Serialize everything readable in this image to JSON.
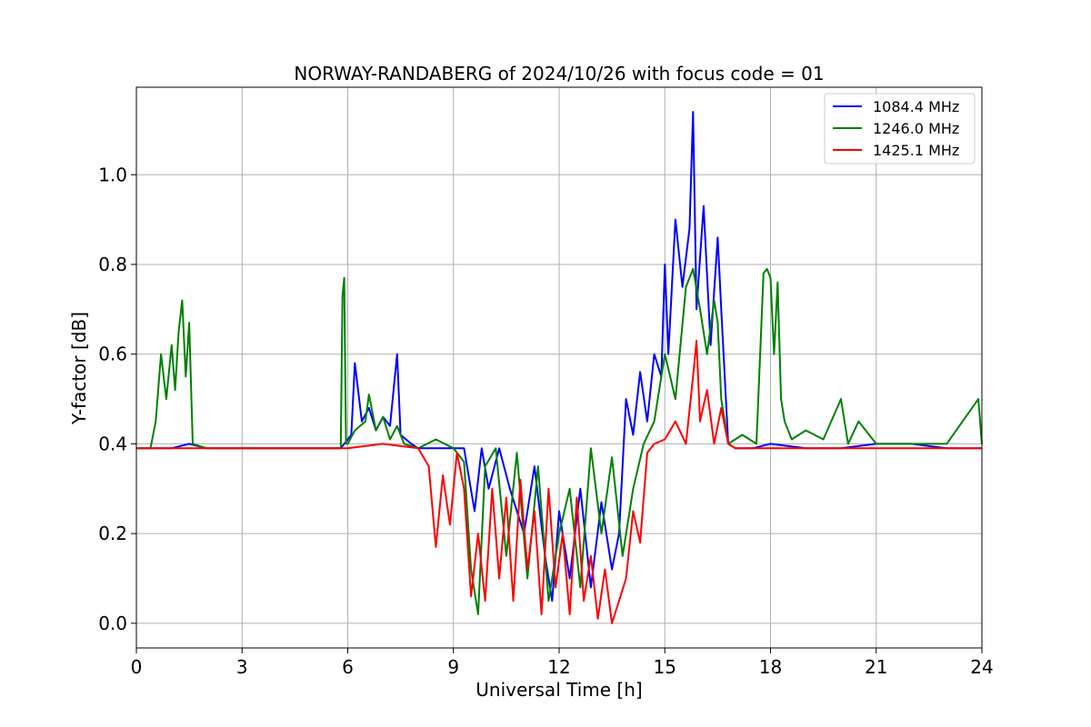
{
  "chart_data": {
    "type": "line",
    "title": "NORWAY-RANDABERG of 2024/10/26 with focus code = 01",
    "xlabel": "Universal Time [h]",
    "ylabel": "Y-factor [dB]",
    "xlim": [
      0,
      24
    ],
    "ylim": [
      -0.055,
      1.195
    ],
    "xticks": [
      0,
      3,
      6,
      9,
      12,
      15,
      18,
      21,
      24
    ],
    "yticks": [
      0.0,
      0.2,
      0.4,
      0.6,
      0.8,
      1.0
    ],
    "ytick_labels": [
      "0.0",
      "0.2",
      "0.4",
      "0.6",
      "0.8",
      "1.0"
    ],
    "grid": true,
    "legend_position": "top-right",
    "series": [
      {
        "name": "1084.4 MHz",
        "color": "#0000ff",
        "x": [
          0,
          0.5,
          1.0,
          1.5,
          2.0,
          3.0,
          4.0,
          5.0,
          5.8,
          6.1,
          6.2,
          6.4,
          6.6,
          6.8,
          7.0,
          7.2,
          7.4,
          7.5,
          7.8,
          8.0,
          8.5,
          9.0,
          9.3,
          9.6,
          9.8,
          10.0,
          10.3,
          10.6,
          11.0,
          11.3,
          11.6,
          11.8,
          12.0,
          12.3,
          12.6,
          12.9,
          13.2,
          13.5,
          13.7,
          13.9,
          14.1,
          14.3,
          14.5,
          14.7,
          14.9,
          15.0,
          15.1,
          15.3,
          15.5,
          15.7,
          15.8,
          15.9,
          16.1,
          16.3,
          16.5,
          16.6,
          16.8,
          17.0,
          17.5,
          18.0,
          19.0,
          20.0,
          21.0,
          22.0,
          23.0,
          24.0
        ],
        "y": [
          0.39,
          0.39,
          0.39,
          0.4,
          0.39,
          0.39,
          0.39,
          0.39,
          0.39,
          0.42,
          0.58,
          0.45,
          0.48,
          0.43,
          0.46,
          0.44,
          0.6,
          0.42,
          0.4,
          0.39,
          0.39,
          0.39,
          0.39,
          0.25,
          0.39,
          0.3,
          0.39,
          0.3,
          0.2,
          0.35,
          0.15,
          0.05,
          0.25,
          0.1,
          0.3,
          0.08,
          0.27,
          0.12,
          0.2,
          0.5,
          0.42,
          0.56,
          0.45,
          0.6,
          0.55,
          0.8,
          0.6,
          0.9,
          0.75,
          0.88,
          1.14,
          0.7,
          0.93,
          0.62,
          0.86,
          0.7,
          0.4,
          0.39,
          0.39,
          0.4,
          0.39,
          0.39,
          0.4,
          0.4,
          0.39,
          0.39
        ]
      },
      {
        "name": "1246.0 MHz",
        "color": "#008000",
        "x": [
          0,
          0.4,
          0.55,
          0.7,
          0.85,
          1.0,
          1.1,
          1.2,
          1.3,
          1.4,
          1.5,
          1.6,
          2.0,
          3.0,
          4.0,
          5.0,
          5.8,
          5.85,
          5.9,
          5.95,
          6.0,
          6.2,
          6.5,
          6.6,
          6.8,
          7.0,
          7.2,
          7.4,
          7.6,
          8.0,
          8.5,
          9.0,
          9.3,
          9.5,
          9.7,
          9.9,
          10.2,
          10.5,
          10.8,
          11.1,
          11.4,
          11.7,
          12.0,
          12.3,
          12.6,
          12.9,
          13.2,
          13.5,
          13.8,
          14.1,
          14.4,
          14.7,
          15.0,
          15.3,
          15.6,
          15.8,
          16.0,
          16.2,
          16.4,
          16.5,
          16.6,
          16.8,
          17.2,
          17.6,
          17.8,
          17.9,
          18.0,
          18.1,
          18.2,
          18.3,
          18.4,
          18.6,
          19.0,
          19.5,
          20.0,
          20.2,
          20.5,
          21.0,
          22.0,
          23.0,
          23.9,
          24.0
        ],
        "y": [
          0.39,
          0.39,
          0.45,
          0.6,
          0.5,
          0.62,
          0.52,
          0.65,
          0.72,
          0.55,
          0.67,
          0.4,
          0.39,
          0.39,
          0.39,
          0.39,
          0.39,
          0.73,
          0.77,
          0.4,
          0.4,
          0.43,
          0.45,
          0.51,
          0.43,
          0.46,
          0.41,
          0.44,
          0.4,
          0.39,
          0.41,
          0.39,
          0.36,
          0.12,
          0.02,
          0.35,
          0.39,
          0.15,
          0.38,
          0.1,
          0.35,
          0.05,
          0.2,
          0.3,
          0.08,
          0.39,
          0.2,
          0.37,
          0.15,
          0.3,
          0.4,
          0.45,
          0.6,
          0.5,
          0.75,
          0.79,
          0.7,
          0.6,
          0.72,
          0.67,
          0.5,
          0.4,
          0.42,
          0.4,
          0.78,
          0.79,
          0.77,
          0.6,
          0.76,
          0.5,
          0.45,
          0.41,
          0.43,
          0.41,
          0.5,
          0.4,
          0.45,
          0.4,
          0.4,
          0.4,
          0.5,
          0.4
        ]
      },
      {
        "name": "1425.1 MHz",
        "color": "#ff0000",
        "x": [
          0,
          1.0,
          2.0,
          3.0,
          4.0,
          5.0,
          6.0,
          7.0,
          8.0,
          8.3,
          8.5,
          8.7,
          8.9,
          9.1,
          9.3,
          9.5,
          9.7,
          9.9,
          10.1,
          10.3,
          10.5,
          10.7,
          10.9,
          11.1,
          11.3,
          11.5,
          11.7,
          11.9,
          12.1,
          12.3,
          12.5,
          12.7,
          12.9,
          13.1,
          13.3,
          13.5,
          13.7,
          13.9,
          14.1,
          14.3,
          14.5,
          14.7,
          15.0,
          15.3,
          15.6,
          15.8,
          15.9,
          16.0,
          16.2,
          16.4,
          16.6,
          16.8,
          17.0,
          18.0,
          19.0,
          20.0,
          21.0,
          22.0,
          23.0,
          24.0
        ],
        "y": [
          0.39,
          0.39,
          0.39,
          0.39,
          0.39,
          0.39,
          0.39,
          0.4,
          0.39,
          0.35,
          0.17,
          0.33,
          0.22,
          0.38,
          0.3,
          0.06,
          0.2,
          0.05,
          0.3,
          0.1,
          0.28,
          0.05,
          0.32,
          0.12,
          0.25,
          0.02,
          0.3,
          0.08,
          0.2,
          0.02,
          0.28,
          0.05,
          0.15,
          0.01,
          0.12,
          0.0,
          0.05,
          0.1,
          0.25,
          0.18,
          0.38,
          0.4,
          0.41,
          0.45,
          0.4,
          0.55,
          0.63,
          0.45,
          0.52,
          0.4,
          0.48,
          0.4,
          0.39,
          0.39,
          0.39,
          0.39,
          0.39,
          0.39,
          0.39,
          0.39
        ]
      }
    ]
  }
}
